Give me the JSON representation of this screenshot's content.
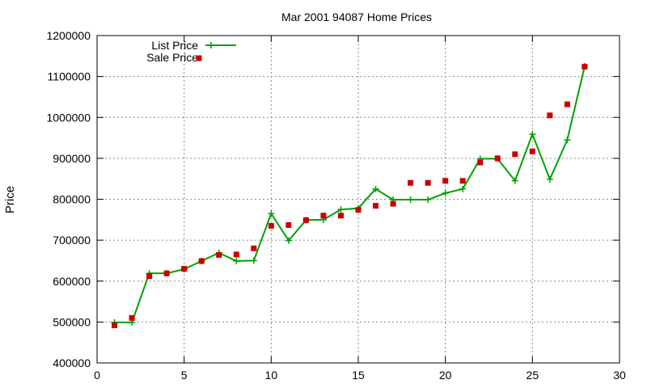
{
  "chart_data": {
    "type": "line",
    "title": "Mar 2001 94087 Home Prices",
    "xlabel": "",
    "ylabel": "Price",
    "xlim": [
      0,
      30
    ],
    "ylim": [
      400000,
      1200000
    ],
    "xticks": [
      0,
      5,
      10,
      15,
      20,
      25,
      30
    ],
    "yticks": [
      400000,
      500000,
      600000,
      700000,
      800000,
      900000,
      1000000,
      1100000,
      1200000
    ],
    "grid": true,
    "legend_position": "top-left",
    "series": [
      {
        "name": "List Price",
        "style": "line+cross",
        "color": "#00a000",
        "x": [
          1,
          2,
          3,
          4,
          5,
          6,
          7,
          8,
          9,
          10,
          11,
          12,
          13,
          14,
          15,
          16,
          17,
          18,
          19,
          20,
          21,
          22,
          23,
          24,
          25,
          26,
          27,
          28
        ],
        "y": [
          499000,
          499000,
          619000,
          619000,
          629000,
          649000,
          669000,
          649000,
          650000,
          765000,
          699000,
          749000,
          750000,
          775000,
          778000,
          825000,
          799000,
          799000,
          799000,
          815000,
          825000,
          899000,
          899000,
          845000,
          959000,
          849000,
          945000,
          1125000
        ]
      },
      {
        "name": "Sale Price",
        "style": "square",
        "color": "#cc0000",
        "x": [
          1,
          2,
          3,
          4,
          5,
          6,
          7,
          8,
          9,
          10,
          11,
          12,
          13,
          14,
          15,
          16,
          17,
          18,
          19,
          20,
          21,
          22,
          23,
          24,
          25,
          26,
          27,
          28
        ],
        "y": [
          492000,
          510000,
          612000,
          619000,
          630000,
          649000,
          664000,
          665000,
          680000,
          735000,
          737000,
          749000,
          760000,
          760000,
          774000,
          784000,
          789000,
          840000,
          840000,
          845000,
          845000,
          890000,
          900000,
          910000,
          917000,
          1005000,
          1032000,
          1124000
        ]
      }
    ]
  }
}
